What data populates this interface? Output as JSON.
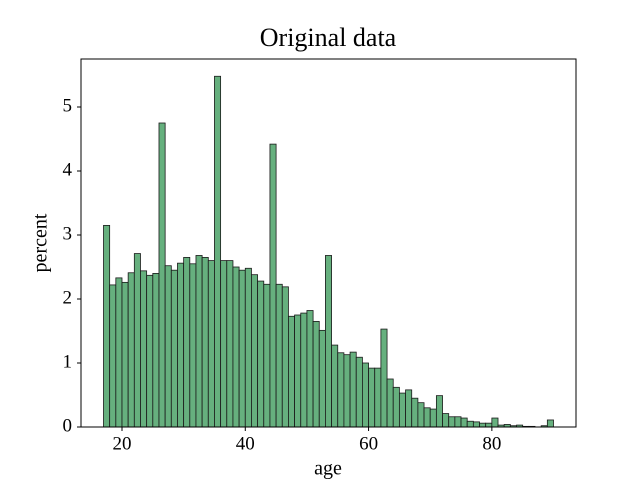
{
  "chart_data": {
    "type": "histogram",
    "title": "Original data",
    "x_label": "age",
    "y_label": "percent",
    "bins": [
      17,
      18,
      19,
      20,
      21,
      22,
      23,
      24,
      25,
      26,
      27,
      28,
      29,
      30,
      31,
      32,
      33,
      34,
      35,
      36,
      37,
      38,
      39,
      40,
      41,
      42,
      43,
      44,
      45,
      46,
      47,
      48,
      49,
      50,
      51,
      52,
      53,
      54,
      55,
      56,
      57,
      58,
      59,
      60,
      61,
      62,
      63,
      64,
      65,
      66,
      67,
      68,
      69,
      70,
      71,
      72,
      73,
      74,
      75,
      76,
      77,
      78,
      79,
      80,
      81,
      82,
      83,
      84,
      85,
      86,
      87,
      88,
      89,
      90
    ],
    "values": [
      3.15,
      2.22,
      2.33,
      2.26,
      2.41,
      2.71,
      2.44,
      2.37,
      2.4,
      4.75,
      2.52,
      2.45,
      2.56,
      2.65,
      2.55,
      2.68,
      2.65,
      2.6,
      5.48,
      2.6,
      2.6,
      2.5,
      2.45,
      2.48,
      2.38,
      2.28,
      2.23,
      4.42,
      2.23,
      2.19,
      1.73,
      1.75,
      1.78,
      1.82,
      1.65,
      1.51,
      2.68,
      1.28,
      1.16,
      1.13,
      1.17,
      1.09,
      1.0,
      0.92,
      0.92,
      1.53,
      0.75,
      0.62,
      0.53,
      0.58,
      0.45,
      0.38,
      0.3,
      0.28,
      0.49,
      0.21,
      0.16,
      0.16,
      0.14,
      0.09,
      0.08,
      0.06,
      0.06,
      0.14,
      0.03,
      0.04,
      0.02,
      0.03,
      0.01,
      0.01,
      0.0,
      0.02,
      0.11
    ],
    "color": "#66b07e",
    "edgecolor": "#1a1a1a",
    "xlim": [
      13.35,
      93.65
    ],
    "ylim": [
      0,
      5.75
    ],
    "xticks": [
      20,
      40,
      60,
      80
    ],
    "yticks": [
      0,
      1,
      2,
      3,
      4,
      5
    ]
  }
}
